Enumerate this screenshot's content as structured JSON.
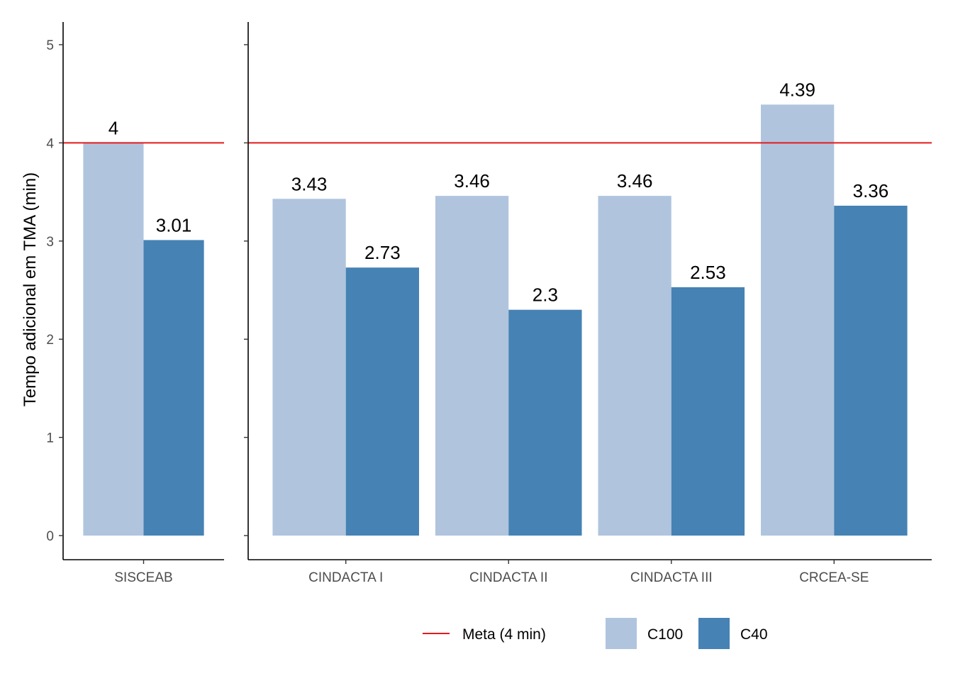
{
  "chart_data": {
    "type": "bar",
    "ylabel": "Tempo adicional em TMA (min)",
    "xlabel": "",
    "ylim": [
      0,
      5.25
    ],
    "yticks": [
      0,
      1,
      2,
      3,
      4,
      5
    ],
    "grid": false,
    "reference_line": {
      "name": "Meta (4 min)",
      "value": 4,
      "color": "#e31a1c"
    },
    "series": [
      {
        "name": "C100",
        "color": "#b0c4de"
      },
      {
        "name": "C40",
        "color": "#4682b4"
      }
    ],
    "panels": [
      {
        "categories": [
          "SISCEAB"
        ],
        "values": {
          "C100": [
            4
          ],
          "C40": [
            3.01
          ]
        },
        "labels": {
          "C100": [
            "4"
          ],
          "C40": [
            "3.01"
          ]
        }
      },
      {
        "categories": [
          "CINDACTA I",
          "CINDACTA II",
          "CINDACTA III",
          "CRCEA-SE"
        ],
        "values": {
          "C100": [
            3.43,
            3.46,
            3.46,
            4.39
          ],
          "C40": [
            2.73,
            2.3,
            2.53,
            3.36
          ]
        },
        "labels": {
          "C100": [
            "3.43",
            "3.46",
            "3.46",
            "4.39"
          ],
          "C40": [
            "2.73",
            "2.3",
            "2.53",
            "3.36"
          ]
        }
      }
    ],
    "legend": {
      "position": "bottom",
      "items": [
        {
          "label": "Meta (4 min)",
          "kind": "line",
          "color": "#e31a1c"
        },
        {
          "label": "C100",
          "kind": "fill",
          "color": "#b0c4de"
        },
        {
          "label": "C40",
          "kind": "fill",
          "color": "#4682b4"
        }
      ]
    }
  }
}
